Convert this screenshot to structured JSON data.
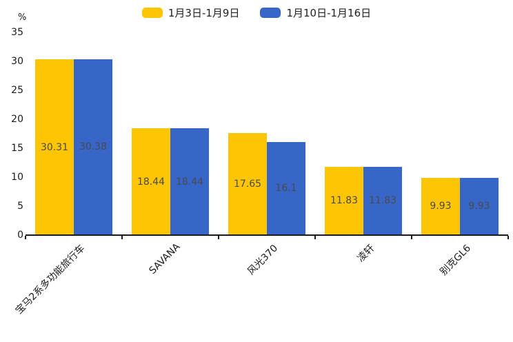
{
  "chart_data": {
    "type": "bar",
    "title": "",
    "unit_label": "%",
    "categories": [
      "宝马2系多功能旅行车",
      "SAVANA",
      "风光370",
      "凌轩",
      "别克GL6"
    ],
    "series": [
      {
        "name": "1月3日-1月9日",
        "color": "#FDC504",
        "values": [
          30.31,
          18.44,
          17.65,
          11.83,
          9.93
        ]
      },
      {
        "name": "1月10日-1月16日",
        "color": "#3866C8",
        "values": [
          30.38,
          18.44,
          16.1,
          11.83,
          9.93
        ]
      }
    ],
    "ylim": [
      0,
      35
    ],
    "yticks": [
      0,
      5,
      10,
      15,
      20,
      25,
      30,
      35
    ],
    "grid": false,
    "legend_position": "top",
    "value_labels": "inside-center",
    "xlabel_rotation_deg": 45
  }
}
